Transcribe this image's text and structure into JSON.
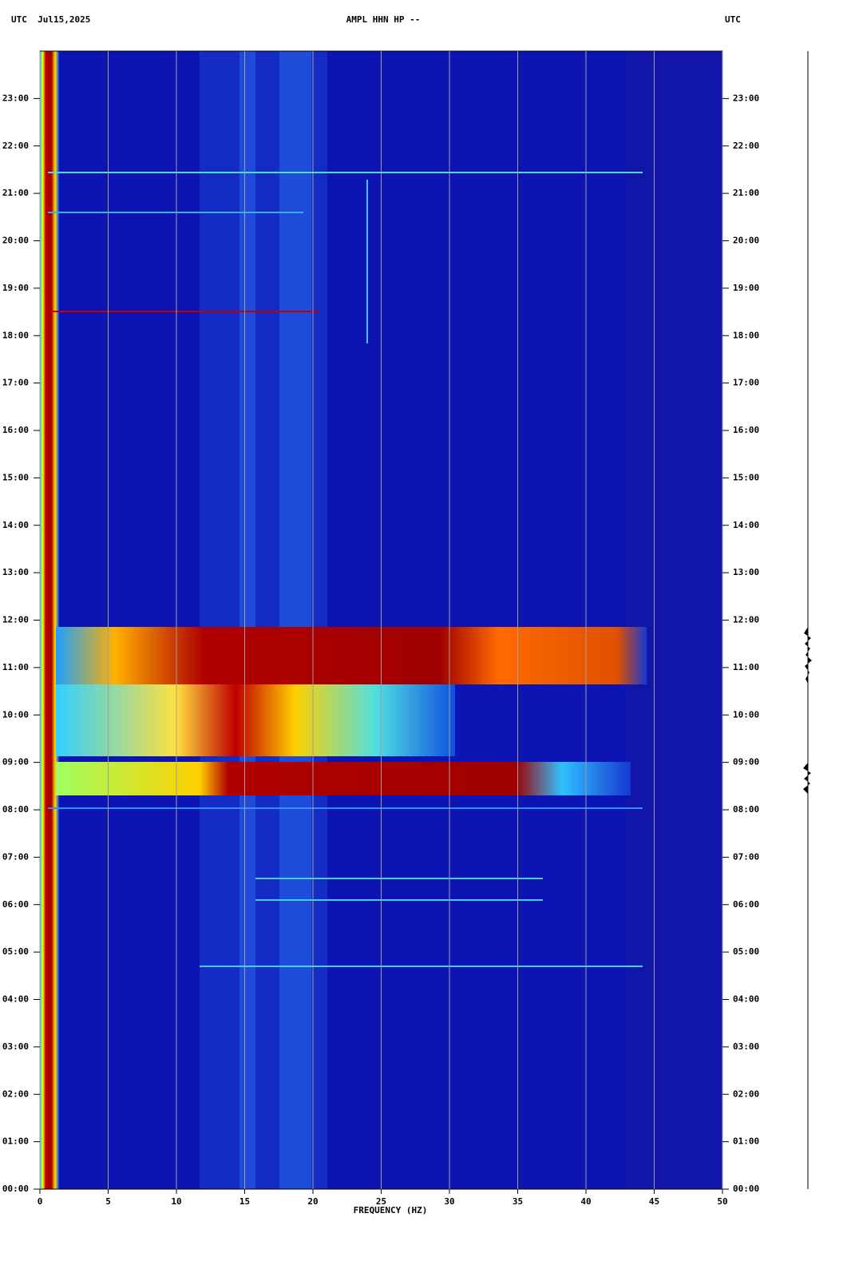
{
  "chart_data": {
    "type": "spectrogram",
    "header_left": "UTC  Jul15,2025",
    "title": "AMPL HHN HP --",
    "header_right": "UTC",
    "xlabel": "FREQUENCY (HZ)",
    "xlim": [
      0,
      50
    ],
    "xticks": [
      0,
      5,
      10,
      15,
      20,
      25,
      30,
      35,
      40,
      45,
      50
    ],
    "ylim": [
      0,
      24
    ],
    "yticks": [
      {
        "value": 0,
        "label": "00:00"
      },
      {
        "value": 1,
        "label": "01:00"
      },
      {
        "value": 2,
        "label": "02:00"
      },
      {
        "value": 3,
        "label": "03:00"
      },
      {
        "value": 4,
        "label": "04:00"
      },
      {
        "value": 5,
        "label": "05:00"
      },
      {
        "value": 6,
        "label": "06:00"
      },
      {
        "value": 7,
        "label": "07:00"
      },
      {
        "value": 8,
        "label": "08:00"
      },
      {
        "value": 9,
        "label": "09:00"
      },
      {
        "value": 10,
        "label": "10:00"
      },
      {
        "value": 11,
        "label": "11:00"
      },
      {
        "value": 12,
        "label": "12:00"
      },
      {
        "value": 13,
        "label": "13:00"
      },
      {
        "value": 14,
        "label": "14:00"
      },
      {
        "value": 15,
        "label": "15:00"
      },
      {
        "value": 16,
        "label": "16:00"
      },
      {
        "value": 17,
        "label": "17:00"
      },
      {
        "value": 18,
        "label": "18:00"
      },
      {
        "value": 19,
        "label": "19:00"
      },
      {
        "value": 20,
        "label": "20:00"
      },
      {
        "value": 21,
        "label": "21:00"
      },
      {
        "value": 22,
        "label": "22:00"
      },
      {
        "value": 23,
        "label": "23:00"
      }
    ],
    "grid": true
  }
}
